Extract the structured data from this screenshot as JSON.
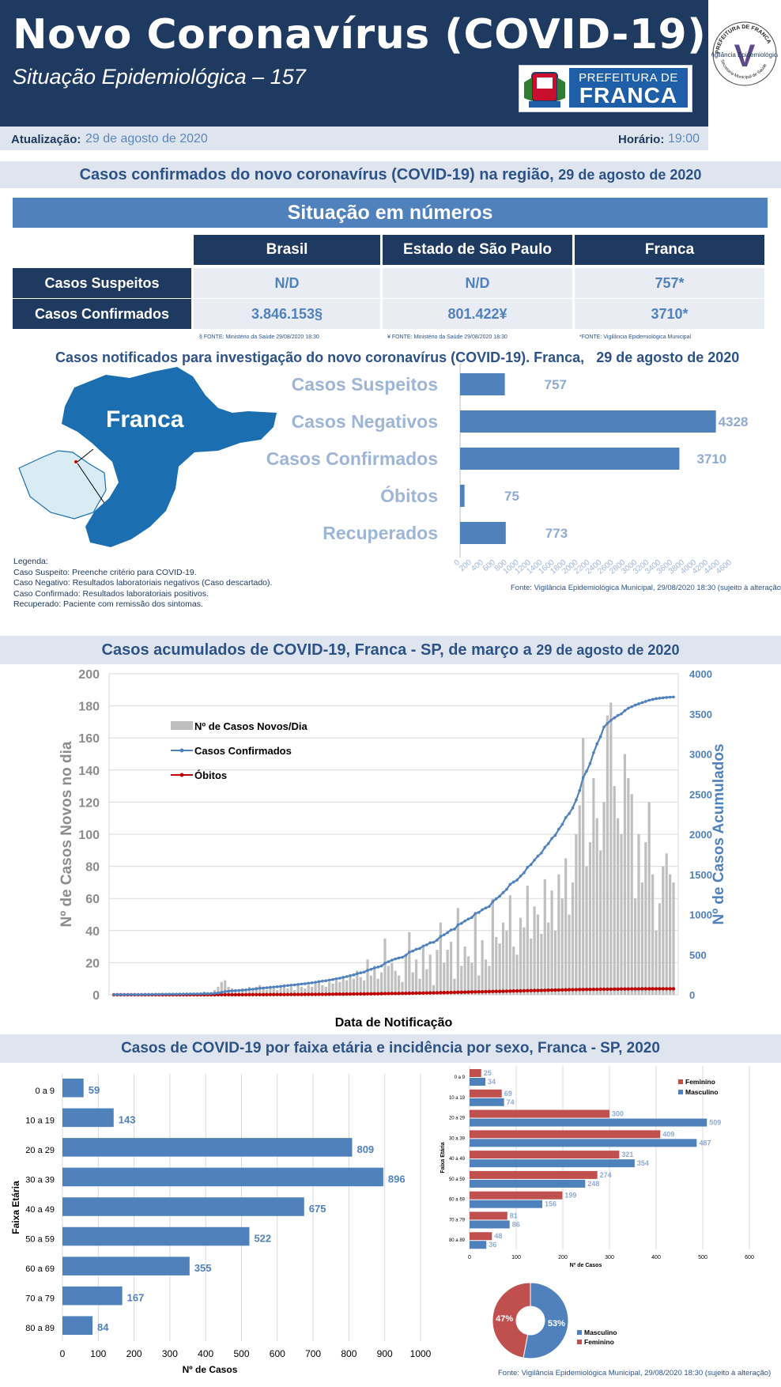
{
  "header": {
    "title": "Novo Coronavírus (COVID-19)",
    "subtitle": "Situação Epidemiológica – 157",
    "logo_line1": "PREFEITURA DE",
    "logo_line2": "FRANCA",
    "seal_top": "PREFEITURA DE FRANCA",
    "seal_mid": "Vigilância Epidemiológica",
    "seal_bottom": "Secretaria Municipal de Saúde",
    "seal_letter": "V"
  },
  "update": {
    "label": "Atualização:",
    "date": "29 de agosto de 2020",
    "time_label": "Horário:",
    "time": "19:00"
  },
  "section1": {
    "title": "Casos confirmados do novo coronavírus (COVID-19) na região,",
    "date": "29 de agosto de 2020"
  },
  "situacao": {
    "title": "Situação em números",
    "columns": [
      "Brasil",
      "Estado de São Paulo",
      "Franca"
    ],
    "rows": [
      {
        "label": "Casos Suspeitos",
        "values": [
          "N/D",
          "N/D",
          "757*"
        ]
      },
      {
        "label": "Casos Confirmados",
        "values": [
          "3.846.153§",
          "801.422¥",
          "3710*"
        ]
      }
    ],
    "footnotes": [
      "§ FONTE: Ministério da Saúde 29/08/2020 18:30",
      "¥ FONTE: Ministério da Saúde 29/08/2020 18:30",
      "*FONTE: Vigilância Epidemiológica Municipal"
    ]
  },
  "section2": {
    "title": "Casos notificados para investigação do novo coronavírus (COVID-19). Franca,",
    "date": "29 de agosto de 2020"
  },
  "map": {
    "label": "Franca",
    "map_color": "#1b6fb1"
  },
  "legenda": {
    "title": "Legenda:",
    "items": [
      "Caso Suspeito: Preenche critério para COVID-19.",
      "Caso Negativo: Resultados laboratoriais negativos (Caso descartado).",
      "Caso Confirmado: Resultados laboratoriais positivos.",
      "Recuperado: Paciente com remissão dos sintomas."
    ]
  },
  "source_notif": "Fonte: Vigilância Epidemiológica Municipal, 29/08/2020 18:30  (sujeito à alteração)",
  "section3": {
    "title": "Casos acumulados de COVID-19, Franca - SP, de março a",
    "date": "29 de agosto de 2020"
  },
  "section4": {
    "title": "Casos de COVID-19 por faixa etária e incidência por sexo, Franca - SP, 2020"
  },
  "source_final": "Fonte: Vigilância Epidemiológica Municipal,  29/08/2020 18:30 (sujeito à alteração)",
  "chart_data": [
    {
      "type": "bar",
      "orientation": "horizontal",
      "categories": [
        "Casos Suspeitos",
        "Casos Negativos",
        "Casos Confirmados",
        "Óbitos",
        "Recuperados"
      ],
      "values": [
        757,
        4328,
        3710,
        75,
        773
      ],
      "xlim": [
        0,
        4600
      ],
      "xticks": [
        0,
        200,
        400,
        600,
        800,
        1000,
        1200,
        1400,
        1600,
        1800,
        2000,
        2200,
        2400,
        2600,
        2800,
        3000,
        3200,
        3400,
        3600,
        3800,
        4000,
        4200,
        4400,
        4600
      ],
      "color": "#4f81bd"
    },
    {
      "type": "bar+line",
      "xlabel": "Data de Notificação",
      "ylabel": "Nº de Casos Novos no dia",
      "y2label": "Nº de Casos Acumulados",
      "ylim": [
        0,
        200
      ],
      "yticks": [
        0,
        20,
        40,
        60,
        80,
        100,
        120,
        140,
        160,
        180,
        200
      ],
      "y2lim": [
        0,
        4000
      ],
      "y2ticks": [
        0,
        500,
        1000,
        1500,
        2000,
        2500,
        3000,
        3500,
        4000
      ],
      "grid": true,
      "legend": [
        "Nº de Casos Novos/Dia",
        "Casos Confirmados",
        "Óbitos"
      ],
      "colors": {
        "bars": "#bfbfbf",
        "confirmed": "#4f81bd",
        "deaths": "#c00000"
      },
      "new_cases": [
        0,
        1,
        0,
        0,
        0,
        1,
        0,
        0,
        0,
        1,
        0,
        1,
        1,
        0,
        1,
        0,
        1,
        0,
        0,
        1,
        0,
        1,
        0,
        1,
        0,
        1,
        2,
        0,
        1,
        3,
        5,
        8,
        9,
        5,
        4,
        3,
        2,
        4,
        3,
        5,
        4,
        5,
        6,
        4,
        3,
        5,
        4,
        3,
        5,
        6,
        4,
        5,
        3,
        6,
        5,
        4,
        6,
        5,
        7,
        8,
        6,
        5,
        8,
        7,
        9,
        8,
        10,
        9,
        12,
        10,
        15,
        11,
        9,
        22,
        12,
        18,
        10,
        14,
        35,
        18,
        20,
        15,
        12,
        8,
        25,
        39,
        14,
        22,
        10,
        30,
        16,
        25,
        6,
        28,
        45,
        20,
        28,
        33,
        10,
        54,
        18,
        30,
        24,
        20,
        50,
        12,
        34,
        22,
        18,
        60,
        36,
        32,
        45,
        40,
        62,
        30,
        25,
        48,
        42,
        68,
        35,
        55,
        50,
        38,
        72,
        45,
        65,
        40,
        75,
        60,
        85,
        50,
        70,
        100,
        118,
        160,
        80,
        95,
        135,
        110,
        90,
        120,
        174,
        182,
        130,
        110,
        100,
        150,
        135,
        125,
        60,
        100,
        70,
        95,
        120,
        75,
        40,
        57,
        80,
        88,
        75,
        70
      ],
      "confirmed": [
        1,
        2,
        2,
        2,
        2,
        3,
        3,
        3,
        3,
        4,
        4,
        5,
        6,
        6,
        7,
        7,
        8,
        8,
        8,
        9,
        9,
        10,
        10,
        11,
        11,
        12,
        14,
        14,
        15,
        18,
        23,
        31,
        40,
        45,
        49,
        52,
        54,
        58,
        61,
        66,
        70,
        75,
        81,
        85,
        88,
        93,
        97,
        100,
        105,
        111,
        115,
        120,
        123,
        129,
        134,
        138,
        144,
        149,
        156,
        164,
        170,
        175,
        183,
        190,
        199,
        207,
        217,
        226,
        238,
        248,
        263,
        274,
        283,
        305,
        317,
        335,
        345,
        359,
        394,
        412,
        432,
        447,
        459,
        467,
        492,
        531,
        545,
        567,
        577,
        607,
        623,
        648,
        654,
        682,
        727,
        747,
        775,
        808,
        818,
        872,
        890,
        920,
        944,
        964,
        1014,
        1026,
        1060,
        1082,
        1100,
        1160,
        1196,
        1228,
        1273,
        1313,
        1375,
        1405,
        1430,
        1478,
        1520,
        1588,
        1623,
        1678,
        1728,
        1766,
        1838,
        1883,
        1948,
        1988,
        2063,
        2123,
        2208,
        2258,
        2328,
        2428,
        2546,
        2706,
        2786,
        2881,
        3016,
        3126,
        3216,
        3336,
        3380,
        3420,
        3450,
        3480,
        3500,
        3540,
        3570,
        3590,
        3610,
        3625,
        3640,
        3655,
        3670,
        3680,
        3690,
        3695,
        3700,
        3705,
        3708,
        3710
      ],
      "deaths_cumulative": [
        0,
        0,
        0,
        0,
        0,
        0,
        0,
        0,
        0,
        0,
        0,
        0,
        0,
        0,
        0,
        0,
        0,
        0,
        0,
        0,
        0,
        0,
        0,
        0,
        0,
        0,
        0,
        0,
        0,
        0,
        1,
        1,
        1,
        1,
        1,
        1,
        1,
        1,
        1,
        2,
        2,
        2,
        2,
        2,
        2,
        3,
        3,
        3,
        3,
        3,
        3,
        4,
        4,
        4,
        4,
        5,
        5,
        5,
        5,
        6,
        6,
        6,
        7,
        7,
        8,
        8,
        8,
        9,
        9,
        10,
        10,
        11,
        11,
        12,
        12,
        13,
        13,
        14,
        15,
        15,
        16,
        16,
        17,
        18,
        18,
        19,
        20,
        20,
        21,
        22,
        23,
        24,
        24,
        25,
        26,
        27,
        28,
        29,
        30,
        31,
        32,
        33,
        34,
        35,
        36,
        37,
        38,
        39,
        40,
        41,
        42,
        43,
        44,
        45,
        46,
        47,
        48,
        49,
        50,
        51,
        52,
        53,
        54,
        55,
        56,
        57,
        58,
        59,
        60,
        61,
        62,
        63,
        64,
        65,
        66,
        66,
        67,
        67,
        68,
        68,
        69,
        69,
        70,
        70,
        71,
        71,
        72,
        72,
        72,
        73,
        73,
        73,
        74,
        74,
        74,
        74,
        75,
        75,
        75,
        75,
        75,
        75
      ]
    },
    {
      "type": "bar",
      "orientation": "horizontal",
      "ylabel": "Faixa Etária",
      "xlabel": "Nº de Casos",
      "categories": [
        "0 a 9",
        "10 a 19",
        "20 a 29",
        "30 a 39",
        "40 a 49",
        "50 a 59",
        "60  a 69",
        "70 a 79",
        "80 a 89"
      ],
      "values": [
        59,
        143,
        809,
        896,
        675,
        522,
        355,
        167,
        84
      ],
      "xlim": [
        0,
        1000
      ],
      "xticks": [
        0,
        100,
        200,
        300,
        400,
        500,
        600,
        700,
        800,
        900,
        1000
      ],
      "color": "#4f81bd"
    },
    {
      "type": "bar",
      "orientation": "horizontal",
      "ylabel": "Faixa Etária",
      "xlabel": "Nº de Casos",
      "categories": [
        "0 a 9",
        "10 a 19",
        "20 a 29",
        "30 a 39",
        "40 a 49",
        "50 a 59",
        "60 a 69",
        "70 a 79",
        "80 a 89"
      ],
      "series": [
        {
          "name": "Feminino",
          "values": [
            25,
            69,
            300,
            409,
            321,
            274,
            199,
            81,
            48
          ],
          "color": "#c0504d"
        },
        {
          "name": "Masculino",
          "values": [
            34,
            74,
            509,
            487,
            354,
            248,
            156,
            86,
            36
          ],
          "color": "#4f81bd"
        }
      ],
      "xlim": [
        0,
        600
      ],
      "xticks": [
        0,
        100,
        200,
        300,
        400,
        500,
        600
      ],
      "legend": "top-right"
    },
    {
      "type": "pie",
      "donut": true,
      "slices": [
        {
          "name": "Masculino",
          "value": 53,
          "label": "53%",
          "color": "#4f81bd"
        },
        {
          "name": "Feminino",
          "value": 47,
          "label": "47%",
          "color": "#c0504d"
        }
      ]
    }
  ]
}
